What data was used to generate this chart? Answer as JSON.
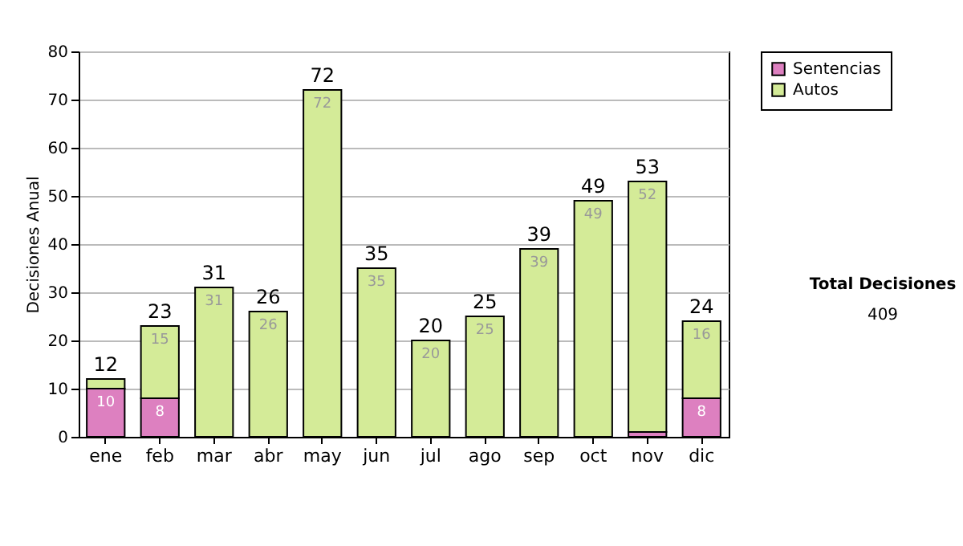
{
  "chart_data": {
    "type": "bar",
    "ylabel": "Decisiones Anual",
    "categories": [
      "ene",
      "feb",
      "mar",
      "abr",
      "may",
      "jun",
      "jul",
      "ago",
      "sep",
      "oct",
      "nov",
      "dic"
    ],
    "series": [
      {
        "name": "Sentencias",
        "color": "#dd80c0",
        "values": [
          10,
          8,
          0,
          0,
          0,
          0,
          0,
          0,
          0,
          0,
          1,
          8
        ],
        "value_labels": [
          "10",
          "8",
          null,
          null,
          null,
          null,
          null,
          null,
          null,
          null,
          null,
          "8"
        ]
      },
      {
        "name": "Autos",
        "color": "#d4eb98",
        "values": [
          2,
          15,
          31,
          26,
          72,
          35,
          20,
          25,
          39,
          49,
          52,
          16
        ],
        "value_labels": [
          null,
          "15",
          "31",
          "26",
          "72",
          "35",
          "20",
          "25",
          "39",
          "49",
          "52",
          "16"
        ]
      }
    ],
    "stacked": true,
    "ylim": [
      0,
      80
    ],
    "yticks": [
      0,
      10,
      20,
      30,
      40,
      50,
      60,
      70,
      80
    ],
    "grid": "y",
    "legend": "right",
    "totals": [
      "12",
      "23",
      "31",
      "26",
      "72",
      "35",
      "20",
      "25",
      "39",
      "49",
      "53",
      "24"
    ],
    "annotations": [
      "Total Decisiones",
      "409"
    ]
  }
}
